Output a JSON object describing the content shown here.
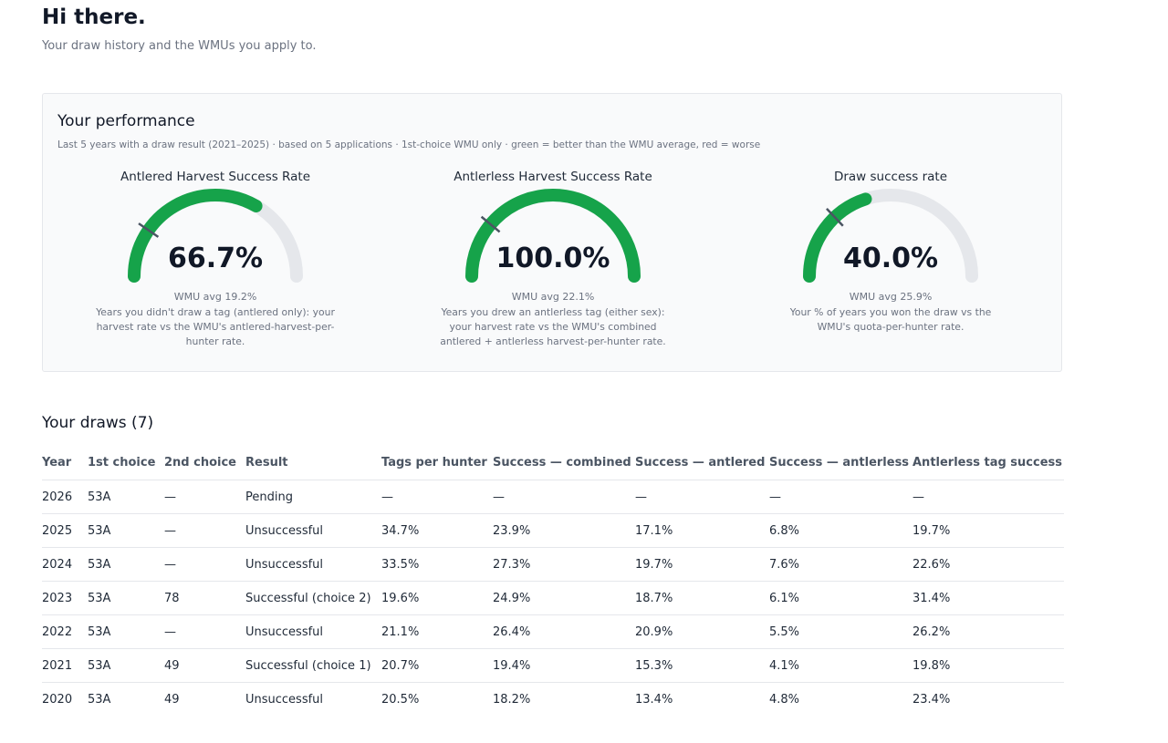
{
  "header": {
    "greeting": "Hi there.",
    "subtitle": "Your draw history and the WMUs you apply to."
  },
  "performance": {
    "title": "Your performance",
    "subtitle": "Last 5 years with a draw result (2021–2025) · based on 5 applications · 1st-choice WMU only · green = better than the WMU average, red = worse",
    "colors": {
      "good": "#16a34a",
      "track": "#e5e7eb",
      "marker": "#4b5563"
    },
    "gauges": [
      {
        "title": "Antlered Harvest Success Rate",
        "value_text": "66.7%",
        "value": 66.7,
        "avg": 19.2,
        "avg_text": "WMU avg 19.2%",
        "description": "Years you didn't draw a tag (antlered only): your harvest rate vs the WMU's antlered-harvest-per-hunter rate."
      },
      {
        "title": "Antlerless Harvest Success Rate",
        "value_text": "100.0%",
        "value": 100.0,
        "avg": 22.1,
        "avg_text": "WMU avg 22.1%",
        "description": "Years you drew an antlerless tag (either sex): your harvest rate vs the WMU's combined antlered + antlerless harvest-per-hunter rate."
      },
      {
        "title": "Draw success rate",
        "value_text": "40.0%",
        "value": 40.0,
        "avg": 25.9,
        "avg_text": "WMU avg 25.9%",
        "description": "Your % of years you won the draw vs the WMU's quota-per-hunter rate."
      }
    ]
  },
  "draws": {
    "title": "Your draws (7)",
    "columns": [
      "Year",
      "1st choice",
      "2nd choice",
      "Result",
      "Tags per hunter",
      "Success — combined",
      "Success — antlered",
      "Success — antlerless",
      "Antlerless tag success"
    ],
    "rows": [
      [
        "2026",
        "53A",
        "—",
        "Pending",
        "—",
        "—",
        "—",
        "—",
        "—"
      ],
      [
        "2025",
        "53A",
        "—",
        "Unsuccessful",
        "34.7%",
        "23.9%",
        "17.1%",
        "6.8%",
        "19.7%"
      ],
      [
        "2024",
        "53A",
        "—",
        "Unsuccessful",
        "33.5%",
        "27.3%",
        "19.7%",
        "7.6%",
        "22.6%"
      ],
      [
        "2023",
        "53A",
        "78",
        "Successful (choice 2)",
        "19.6%",
        "24.9%",
        "18.7%",
        "6.1%",
        "31.4%"
      ],
      [
        "2022",
        "53A",
        "—",
        "Unsuccessful",
        "21.1%",
        "26.4%",
        "20.9%",
        "5.5%",
        "26.2%"
      ],
      [
        "2021",
        "53A",
        "49",
        "Successful (choice 1)",
        "20.7%",
        "19.4%",
        "15.3%",
        "4.1%",
        "19.8%"
      ],
      [
        "2020",
        "53A",
        "49",
        "Unsuccessful",
        "20.5%",
        "18.2%",
        "13.4%",
        "4.8%",
        "23.4%"
      ]
    ]
  }
}
